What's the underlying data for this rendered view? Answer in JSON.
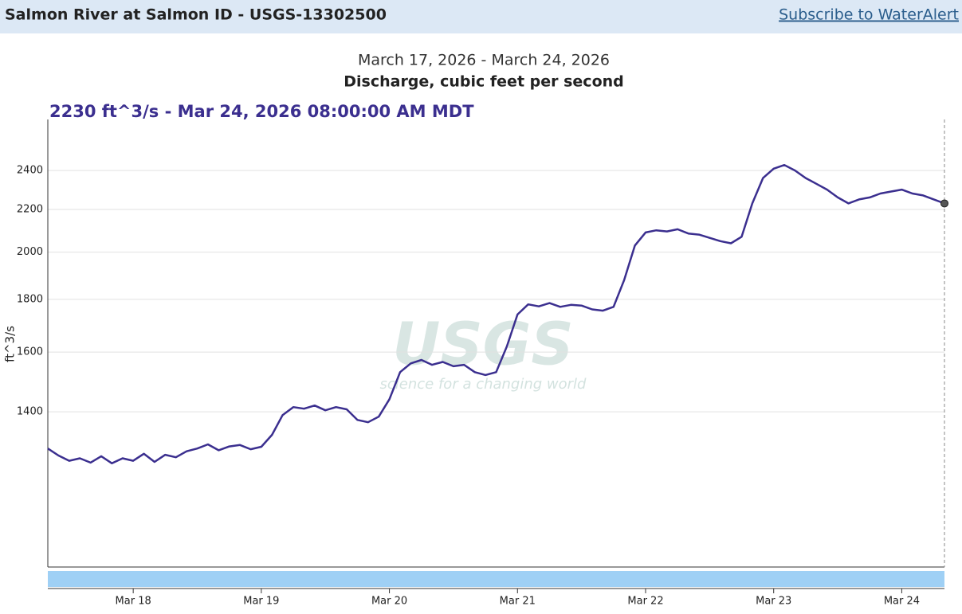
{
  "header": {
    "title": "Salmon River at Salmon ID - USGS-13302500",
    "link": "Subscribe to WaterAlert"
  },
  "watermark": {
    "text": "USGS",
    "tagline": "science for a changing world"
  },
  "chart_data": {
    "type": "line",
    "subtitle": "March 17, 2026 - March 24, 2026",
    "title": "Discharge, cubic feet per second",
    "tooltip": "2230 ft^3/s - Mar 24, 2026 08:00:00 AM MDT",
    "y_label": "ft^3/s",
    "color": "#3b2f8f",
    "log_scale": true,
    "grid": true,
    "x": [
      "2026-03-17T08:00",
      "2026-03-17T10:00",
      "2026-03-17T12:00",
      "2026-03-17T14:00",
      "2026-03-17T16:00",
      "2026-03-17T18:00",
      "2026-03-17T20:00",
      "2026-03-17T22:00",
      "2026-03-18T00:00",
      "2026-03-18T02:00",
      "2026-03-18T04:00",
      "2026-03-18T06:00",
      "2026-03-18T08:00",
      "2026-03-18T10:00",
      "2026-03-18T12:00",
      "2026-03-18T14:00",
      "2026-03-18T16:00",
      "2026-03-18T18:00",
      "2026-03-18T20:00",
      "2026-03-18T22:00",
      "2026-03-19T00:00",
      "2026-03-19T02:00",
      "2026-03-19T04:00",
      "2026-03-19T06:00",
      "2026-03-19T08:00",
      "2026-03-19T10:00",
      "2026-03-19T12:00",
      "2026-03-19T14:00",
      "2026-03-19T16:00",
      "2026-03-19T18:00",
      "2026-03-19T20:00",
      "2026-03-19T22:00",
      "2026-03-20T00:00",
      "2026-03-20T02:00",
      "2026-03-20T04:00",
      "2026-03-20T06:00",
      "2026-03-20T08:00",
      "2026-03-20T10:00",
      "2026-03-20T12:00",
      "2026-03-20T14:00",
      "2026-03-20T16:00",
      "2026-03-20T18:00",
      "2026-03-20T20:00",
      "2026-03-20T22:00",
      "2026-03-21T00:00",
      "2026-03-21T02:00",
      "2026-03-21T04:00",
      "2026-03-21T06:00",
      "2026-03-21T08:00",
      "2026-03-21T10:00",
      "2026-03-21T12:00",
      "2026-03-21T14:00",
      "2026-03-21T16:00",
      "2026-03-21T18:00",
      "2026-03-21T20:00",
      "2026-03-21T22:00",
      "2026-03-22T00:00",
      "2026-03-22T02:00",
      "2026-03-22T04:00",
      "2026-03-22T06:00",
      "2026-03-22T08:00",
      "2026-03-22T10:00",
      "2026-03-22T12:00",
      "2026-03-22T14:00",
      "2026-03-22T16:00",
      "2026-03-22T18:00",
      "2026-03-22T20:00",
      "2026-03-22T22:00",
      "2026-03-23T00:00",
      "2026-03-23T02:00",
      "2026-03-23T04:00",
      "2026-03-23T06:00",
      "2026-03-23T08:00",
      "2026-03-23T10:00",
      "2026-03-23T12:00",
      "2026-03-23T14:00",
      "2026-03-23T16:00",
      "2026-03-23T18:00",
      "2026-03-23T20:00",
      "2026-03-23T22:00",
      "2026-03-24T00:00",
      "2026-03-24T02:00",
      "2026-03-24T04:00",
      "2026-03-24T06:00",
      "2026-03-24T08:00"
    ],
    "values": [
      1290,
      1270,
      1255,
      1262,
      1250,
      1268,
      1248,
      1262,
      1255,
      1275,
      1252,
      1272,
      1265,
      1282,
      1290,
      1302,
      1285,
      1296,
      1300,
      1288,
      1295,
      1330,
      1390,
      1415,
      1410,
      1420,
      1405,
      1415,
      1408,
      1375,
      1368,
      1385,
      1440,
      1530,
      1560,
      1572,
      1555,
      1565,
      1550,
      1555,
      1530,
      1520,
      1530,
      1620,
      1740,
      1780,
      1772,
      1785,
      1770,
      1778,
      1775,
      1760,
      1755,
      1770,
      1880,
      2030,
      2090,
      2100,
      2095,
      2105,
      2085,
      2080,
      2065,
      2050,
      2040,
      2070,
      2230,
      2360,
      2410,
      2430,
      2400,
      2360,
      2330,
      2300,
      2260,
      2230,
      2250,
      2260,
      2280,
      2290,
      2300,
      2280,
      2270,
      2250,
      2230
    ],
    "xlim": [
      "2026-03-17T08:00",
      "2026-03-24T08:00"
    ],
    "ylim": [
      990,
      2690
    ],
    "yticks": [
      1400,
      1600,
      1800,
      2000,
      2200,
      2400
    ],
    "xticks": [
      {
        "value": "2026-03-18T00:00",
        "label": "Mar 18"
      },
      {
        "value": "2026-03-19T00:00",
        "label": "Mar 19"
      },
      {
        "value": "2026-03-20T00:00",
        "label": "Mar 20"
      },
      {
        "value": "2026-03-21T00:00",
        "label": "Mar 21"
      },
      {
        "value": "2026-03-22T00:00",
        "label": "Mar 22"
      },
      {
        "value": "2026-03-23T00:00",
        "label": "Mar 23"
      },
      {
        "value": "2026-03-24T00:00",
        "label": "Mar 24"
      }
    ]
  }
}
